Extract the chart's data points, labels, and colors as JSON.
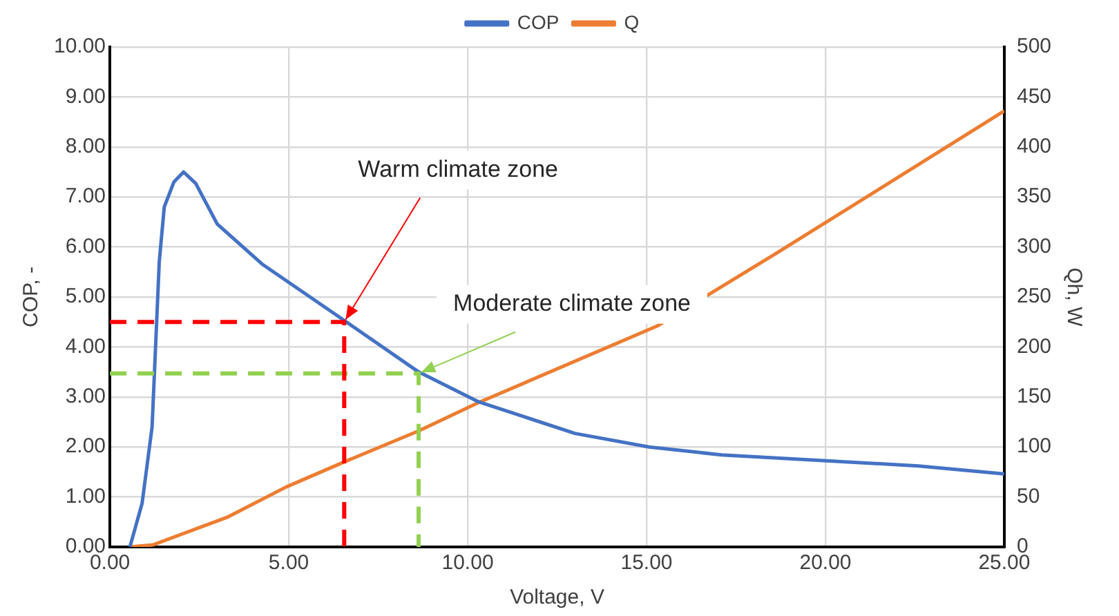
{
  "chart_data": {
    "type": "line",
    "xlabel": "Voltage, V",
    "ylabel": "COP, -",
    "y2label": "Qh, W",
    "xlim": [
      0,
      25
    ],
    "xticks": [
      {
        "value": 0,
        "label": "0.00"
      },
      {
        "value": 5,
        "label": "5.00"
      },
      {
        "value": 10,
        "label": "10.00"
      },
      {
        "value": 15,
        "label": "15.00"
      },
      {
        "value": 20,
        "label": "20.00"
      },
      {
        "value": 25,
        "label": "25.00"
      }
    ],
    "ylim": [
      0,
      10
    ],
    "yticks": [
      {
        "value": 0,
        "label": "0.00"
      },
      {
        "value": 1,
        "label": "1.00"
      },
      {
        "value": 2,
        "label": "2.00"
      },
      {
        "value": 3,
        "label": "3.00"
      },
      {
        "value": 4,
        "label": "4.00"
      },
      {
        "value": 5,
        "label": "5.00"
      },
      {
        "value": 6,
        "label": "6.00"
      },
      {
        "value": 7,
        "label": "7.00"
      },
      {
        "value": 8,
        "label": "8.00"
      },
      {
        "value": 9,
        "label": "9.00"
      },
      {
        "value": 10,
        "label": "10.00"
      }
    ],
    "y2lim": [
      0,
      500
    ],
    "y2ticks": [
      0,
      50,
      100,
      150,
      200,
      250,
      300,
      350,
      400,
      450,
      500
    ],
    "grid": true,
    "legend": "top",
    "marker": "none",
    "series": [
      {
        "name": "COP",
        "color": "#4472c4",
        "x": [
          0.56,
          0.9,
          1.18,
          1.38,
          1.52,
          1.79,
          2.06,
          2.4,
          3.0,
          4.25,
          6.55,
          8.63,
          10.28,
          13.0,
          15.07,
          17.1,
          19.86,
          22.6,
          25
        ],
        "values": [
          0,
          0.87,
          2.4,
          5.7,
          6.8,
          7.3,
          7.5,
          7.27,
          6.46,
          5.66,
          4.53,
          3.5,
          2.91,
          2.27,
          2.0,
          1.84,
          1.73,
          1.62,
          1.46
        ]
      },
      {
        "name": "Q",
        "color": "#ed7d31",
        "axis": "y2",
        "x": [
          0.56,
          1.2,
          3.3,
          4.93,
          6.55,
          8.63,
          10.28,
          15.3,
          18.6,
          25
        ],
        "values": [
          0,
          2,
          30,
          60,
          85,
          116,
          144,
          221,
          293,
          436
        ]
      },
      {
        "type": "line",
        "color": "#ff0000",
        "line_style": "dashed",
        "x": [
          0,
          6.55,
          6.55
        ],
        "values": [
          4.5,
          4.5,
          0
        ]
      },
      {
        "type": "line",
        "color": "#92d050",
        "line_style": "dashed",
        "x": [
          0,
          8.63,
          8.63
        ],
        "values": [
          3.47,
          3.47,
          0
        ]
      }
    ],
    "annotations": [
      {
        "text": "Warm climate zone",
        "x": 6.55,
        "y": 4.5
      },
      {
        "text": "Moderate climate zone",
        "x": 8.63,
        "y": 3.47
      }
    ]
  }
}
